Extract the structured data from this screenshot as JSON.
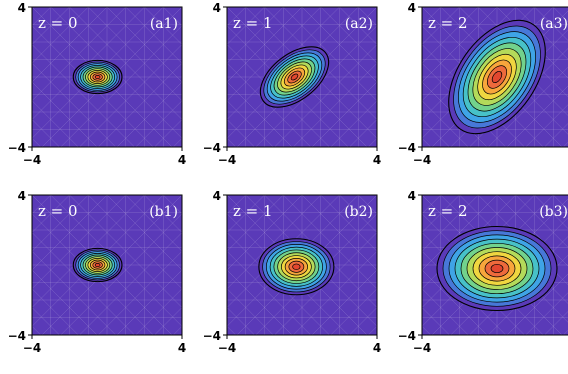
{
  "chart_data": {
    "type": "contour",
    "grid": "2x3",
    "colors": {
      "background": "#5a3ab8",
      "mesh": "#ffffff",
      "contour_line": "#000000",
      "levels": [
        "#5a3ab8",
        "#4778d8",
        "#3fa4e6",
        "#47c1c8",
        "#72d28c",
        "#b4da5a",
        "#f0d640",
        "#f8a63c",
        "#ee6a3c",
        "#e2472f"
      ]
    },
    "panels": [
      {
        "label": "(a1)",
        "z_text": "z = 0",
        "xlim": [
          -4,
          4
        ],
        "ylim": [
          -4,
          4
        ],
        "ticks": {
          "xmin": "−4",
          "xmax": "4",
          "ymin": "−4",
          "ymax": "4"
        },
        "center": [
          -0.5,
          0.0
        ],
        "semi_x": 1.3,
        "semi_y": 0.95,
        "angle_deg": 0
      },
      {
        "label": "(a2)",
        "z_text": "z = 1",
        "xlim": [
          -4,
          4
        ],
        "ylim": [
          -4,
          4
        ],
        "ticks": {
          "xmin": "−4",
          "xmax": "4",
          "ymin": "−4",
          "ymax": "4"
        },
        "center": [
          -0.4,
          0.0
        ],
        "semi_x": 2.1,
        "semi_y": 1.3,
        "angle_deg": 38
      },
      {
        "label": "(a3)",
        "z_text": "z = 2",
        "xlim": [
          -4,
          4
        ],
        "ylim": [
          -4,
          4
        ],
        "ticks": {
          "xmin": "−4",
          "xmax": "4",
          "ymin": "−4",
          "ymax": "4"
        },
        "center": [
          0.0,
          0.0
        ],
        "semi_x": 3.4,
        "semi_y": 2.2,
        "angle_deg": 55
      },
      {
        "label": "(b1)",
        "z_text": "z = 0",
        "xlim": [
          -4,
          4
        ],
        "ylim": [
          -4,
          4
        ],
        "ticks": {
          "xmin": "−4",
          "xmax": "4",
          "ymin": "−4",
          "ymax": "4"
        },
        "center": [
          -0.5,
          0.0
        ],
        "semi_x": 1.3,
        "semi_y": 0.95,
        "angle_deg": 0
      },
      {
        "label": "(b2)",
        "z_text": "z = 1",
        "xlim": [
          -4,
          4
        ],
        "ylim": [
          -4,
          4
        ],
        "ticks": {
          "xmin": "−4",
          "xmax": "4",
          "ymin": "−4",
          "ymax": "4"
        },
        "center": [
          -0.3,
          -0.1
        ],
        "semi_x": 2.0,
        "semi_y": 1.6,
        "angle_deg": 0
      },
      {
        "label": "(b3)",
        "z_text": "z = 2",
        "xlim": [
          -4,
          4
        ],
        "ylim": [
          -4,
          4
        ],
        "ticks": {
          "xmin": "−4",
          "xmax": "4",
          "ymin": "−4",
          "ymax": "4"
        },
        "center": [
          0.0,
          -0.2
        ],
        "semi_x": 3.2,
        "semi_y": 2.4,
        "angle_deg": 0
      }
    ]
  }
}
